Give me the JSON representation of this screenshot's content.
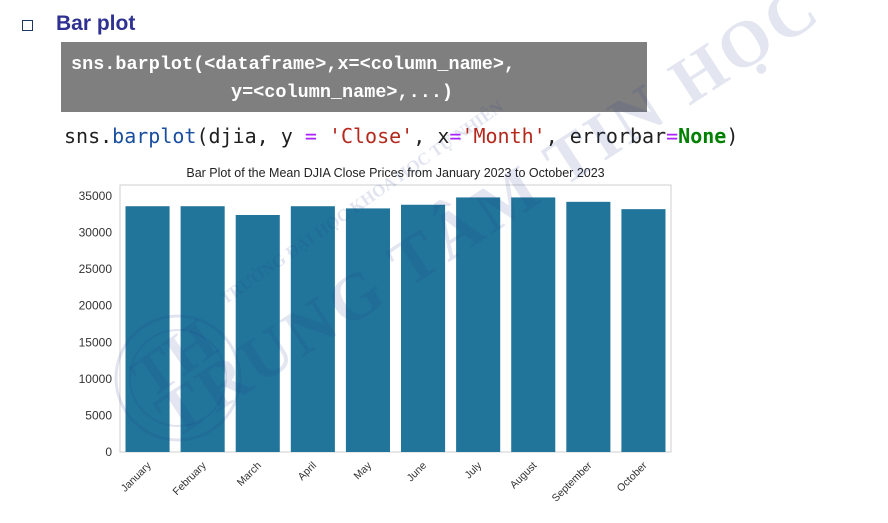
{
  "slide": {
    "heading": "Bar plot",
    "syntax_line1": "sns.barplot(<dataframe>,x=<column_name>,",
    "syntax_line2": "y=<column_name>,...)",
    "code": {
      "module": "sns.",
      "func": "barplot",
      "open": "(djia, y ",
      "eq1": "=",
      "arg1": " ",
      "close_str": "'Close'",
      "mid": ", x",
      "eq2": "=",
      "month_str": "'Month'",
      "mid2": ", errorbar",
      "eq3": "=",
      "none_kw": "None",
      "end": ")"
    }
  },
  "watermark": {
    "arc_text": "TRƯỜNG ĐẠI HỌC KHOA HỌC TỰ NHIÊN",
    "big_text": "TRUNG TÂM TIN HỌC",
    "logo_letters": "TH"
  },
  "chart_data": {
    "type": "bar",
    "title": "Bar Plot of the Mean DJIA Close Prices from January 2023 to October 2023",
    "xlabel": "",
    "ylabel": "",
    "categories": [
      "January",
      "February",
      "March",
      "April",
      "May",
      "June",
      "July",
      "August",
      "September",
      "October"
    ],
    "values": [
      33600,
      33600,
      32400,
      33600,
      33300,
      33800,
      34800,
      34800,
      34200,
      33200
    ],
    "ylim": [
      0,
      36500
    ],
    "yticks": [
      0,
      5000,
      10000,
      15000,
      20000,
      25000,
      30000,
      35000
    ],
    "bar_color": "#21759b",
    "grid": false
  }
}
